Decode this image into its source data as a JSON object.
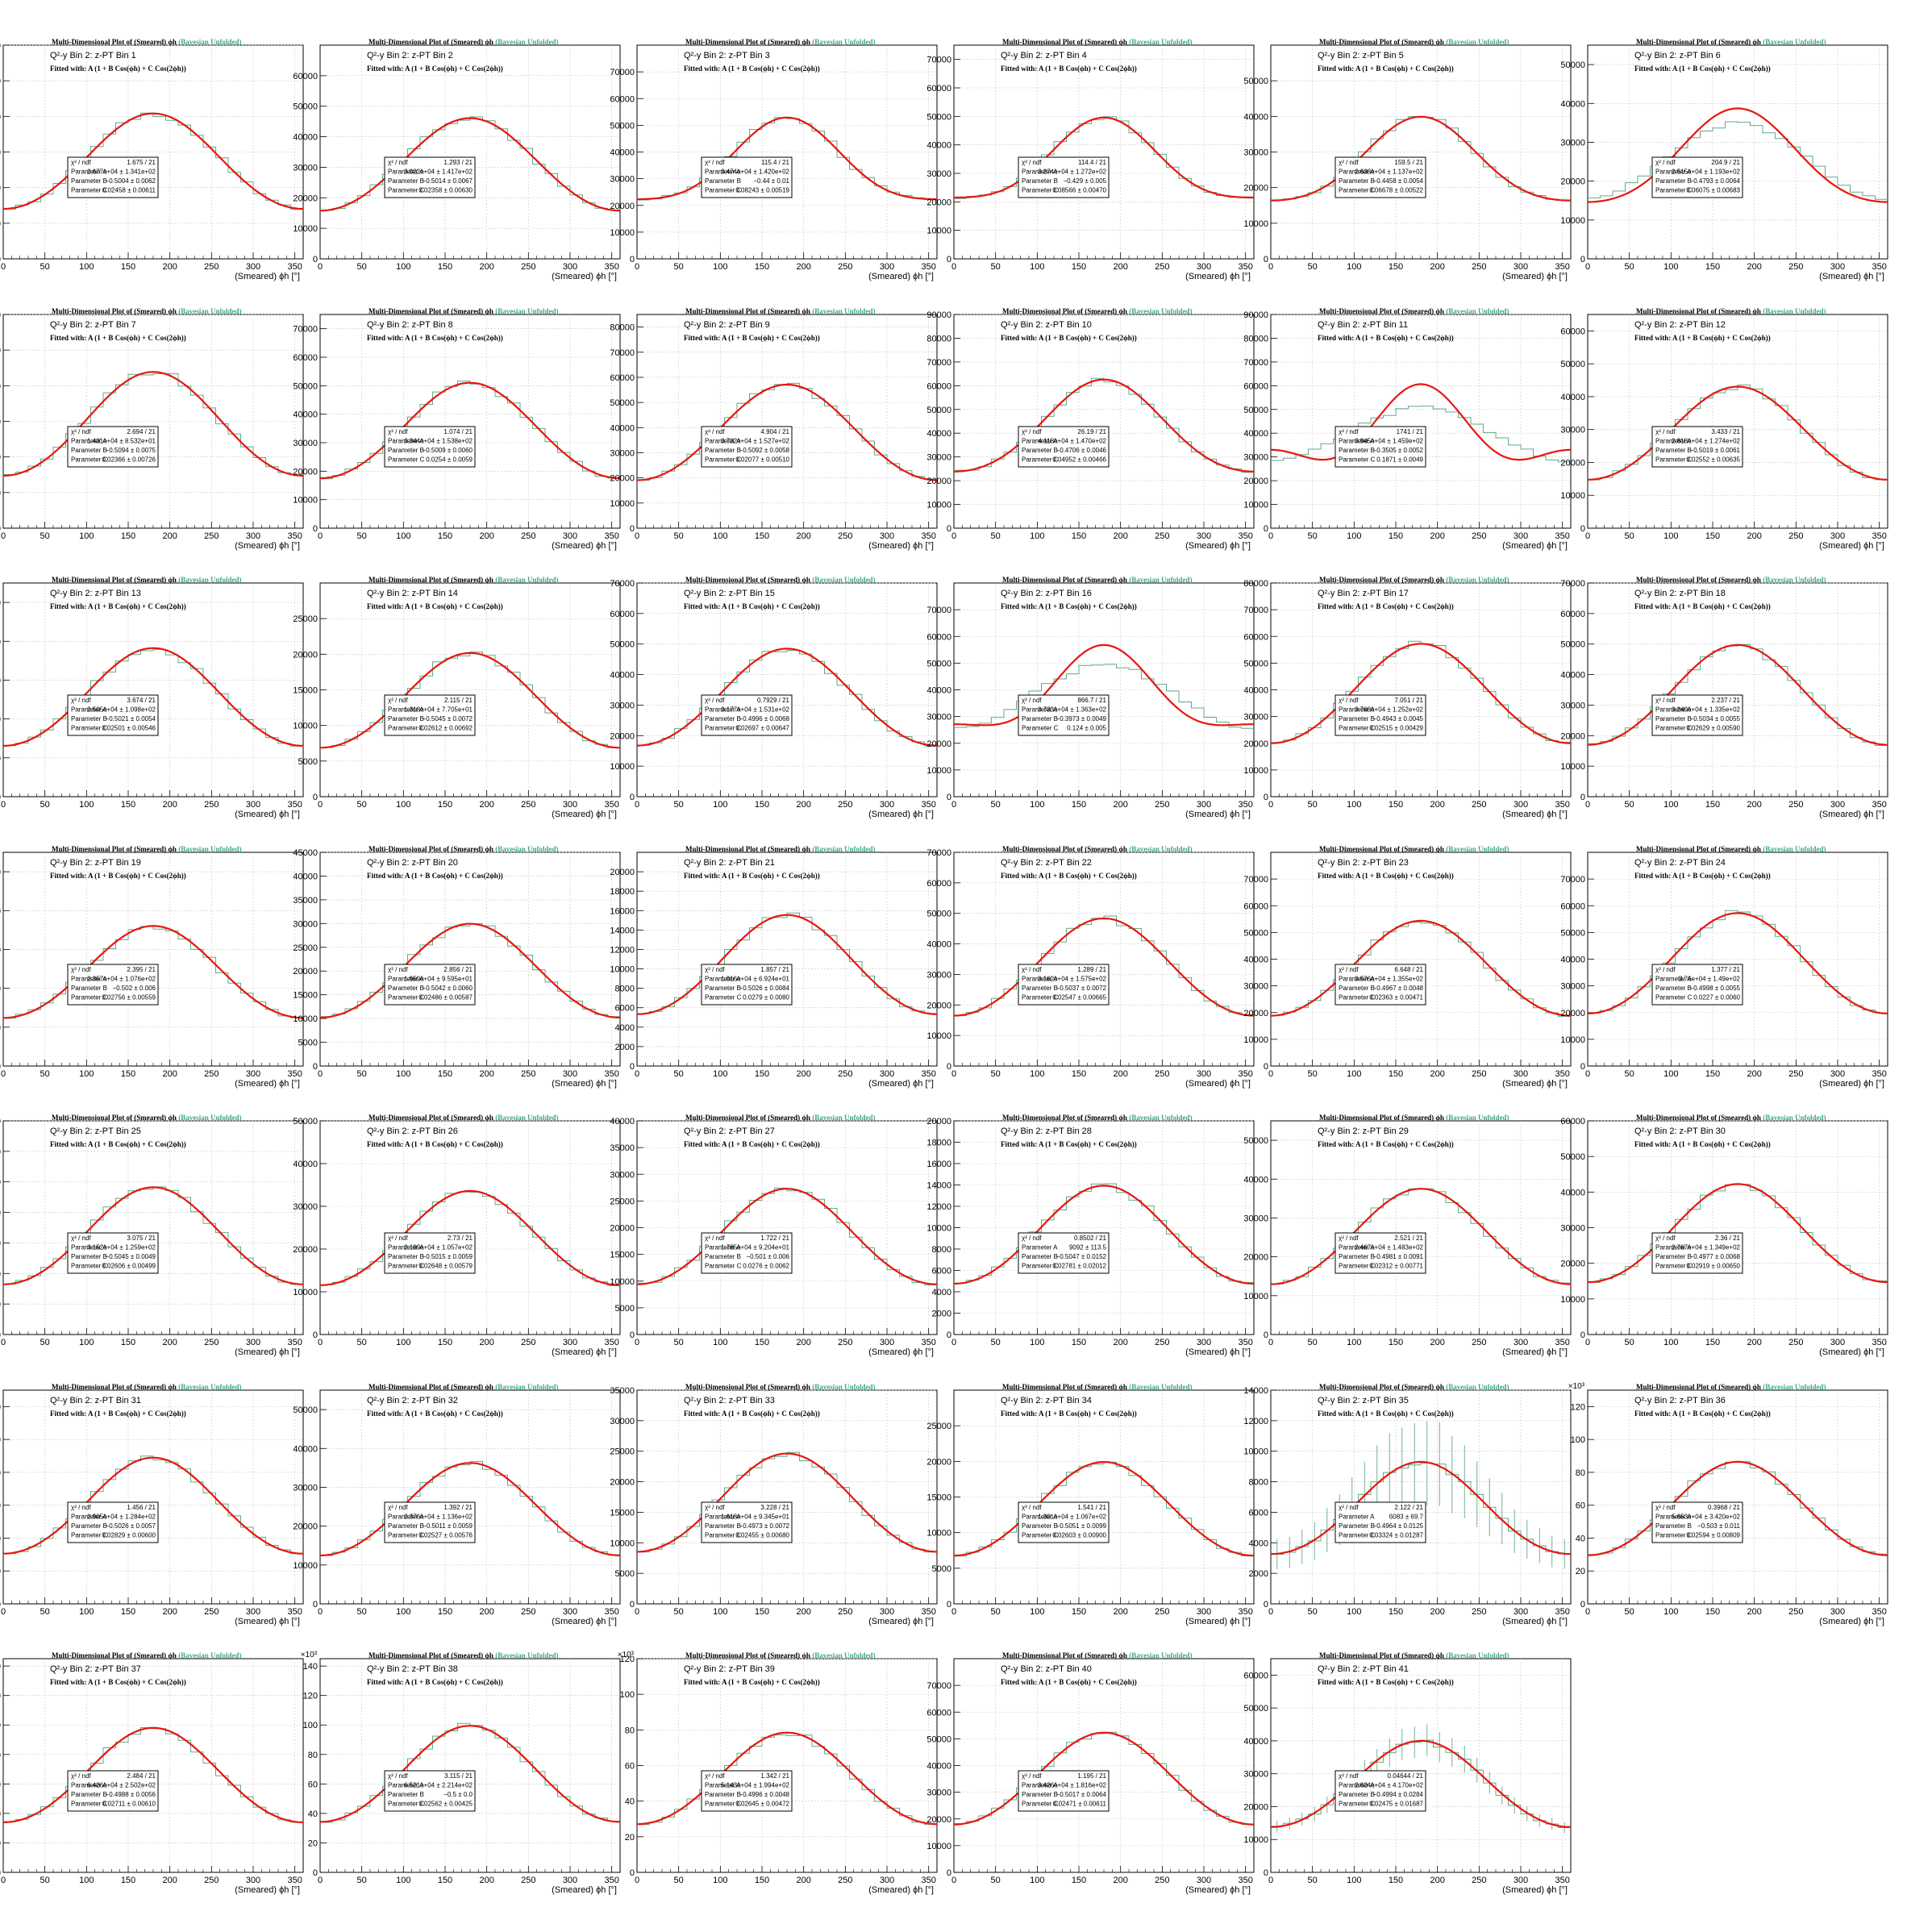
{
  "figure": {
    "title_prefix": "Multi-Dimensional Plot of (Smeared)",
    "title_var": "ϕh",
    "title_suffix": "(Bayesian Unfolded)",
    "label_prefix": "Q²-y Bin 2: z-PT Bin",
    "fit_label": "Fitted with: A (1 + B Cos(ϕh) + C Cos(2ϕh))",
    "xlabel": "(Smeared) ϕh [°]",
    "stats_labels": [
      "χ² / ndf",
      "Parameter A",
      "Parameter B",
      "Parameter C"
    ],
    "colors": {
      "fit": "#e8160c",
      "data": "#5fa98c",
      "grid": "#c8c8c8",
      "axis": "#000000"
    }
  },
  "chart_data": [
    {
      "type": "line",
      "bin": 1,
      "chi2": "1.675 / 21",
      "pA": "2.677e+04 ± 1.341e+02",
      "pB": "−0.5004 ± 0.0062",
      "pC": "0.02458 ± 0.00611",
      "A": 26770,
      "B": -0.5004,
      "C": 0.02458,
      "ylim": [
        0,
        60000
      ],
      "yticks": [
        0,
        10000,
        20000,
        30000,
        40000,
        50000,
        60000
      ],
      "yscale_label": ""
    },
    {
      "type": "line",
      "bin": 2,
      "chi2": "1.293 / 21",
      "pA": "3.022e+04 ± 1.417e+02",
      "pB": "−0.5014 ± 0.0067",
      "pC": "0.02358 ± 0.00630",
      "A": 30220,
      "B": -0.5014,
      "C": 0.02358,
      "ylim": [
        0,
        70000
      ],
      "yticks": [
        0,
        10000,
        20000,
        30000,
        40000,
        50000,
        60000
      ],
      "yscale_label": ""
    },
    {
      "type": "line",
      "bin": 3,
      "chi2": "115.4 / 21",
      "pA": "3.474e+04 ± 1.420e+02",
      "pB": "−0.44 ± 0.01",
      "pC": "0.08243 ± 0.00519",
      "A": 34740,
      "B": -0.44,
      "C": 0.08243,
      "ylim": [
        0,
        80000
      ],
      "yticks": [
        0,
        10000,
        20000,
        30000,
        40000,
        50000,
        60000,
        70000
      ],
      "yscale_label": ""
    },
    {
      "type": "line",
      "bin": 4,
      "chi2": "114.4 / 21",
      "pA": "3.274e+04 ± 1.272e+02",
      "pB": "−0.429 ± 0.005",
      "pC": "0.08566 ± 0.00470",
      "A": 32740,
      "B": -0.429,
      "C": 0.08566,
      "ylim": [
        0,
        75000
      ],
      "yticks": [
        0,
        10000,
        20000,
        30000,
        40000,
        50000,
        60000,
        70000
      ],
      "yscale_label": ""
    },
    {
      "type": "line",
      "bin": 5,
      "chi2": "159.5 / 21",
      "pA": "2.638e+04 ± 1.137e+02",
      "pB": "−0.4458 ± 0.0054",
      "pC": "0.06678 ± 0.00522",
      "A": 26380,
      "B": -0.4458,
      "C": 0.06678,
      "ylim": [
        0,
        60000
      ],
      "yticks": [
        0,
        10000,
        20000,
        30000,
        40000,
        50000
      ],
      "yscale_label": ""
    },
    {
      "type": "line",
      "bin": 6,
      "chi2": "204.9 / 21",
      "pA": "2.515e+04 ± 1.193e+02",
      "pB": "−0.4793 ± 0.0064",
      "pC": "0.06075 ± 0.00683",
      "A": 25150,
      "B": -0.4793,
      "C": 0.06075,
      "ylim": [
        0,
        55000
      ],
      "yticks": [
        0,
        10000,
        20000,
        30000,
        40000,
        50000
      ],
      "yscale_label": ""
    },
    {
      "type": "line",
      "bin": 7,
      "chi2": "2.694 / 21",
      "pA": "1.431e+04 ± 8.532e+01",
      "pB": "−0.5094 ± 0.0075",
      "pC": "0.02366 ± 0.00726",
      "A": 14310,
      "B": -0.5094,
      "C": 0.02366,
      "ylim": [
        0,
        30000
      ],
      "yticks": [
        0,
        5000,
        10000,
        15000,
        20000,
        25000,
        30000
      ],
      "yscale_label": ""
    },
    {
      "type": "line",
      "bin": 8,
      "chi2": "1.074 / 21",
      "pA": "3.344e+04 ± 1.538e+02",
      "pB": "−0.5009 ± 0.0060",
      "pC": "0.0254 ± 0.0059",
      "A": 33440,
      "B": -0.5009,
      "C": 0.0254,
      "ylim": [
        0,
        75000
      ],
      "yticks": [
        0,
        10000,
        20000,
        30000,
        40000,
        50000,
        60000,
        70000
      ],
      "yscale_label": ""
    },
    {
      "type": "line",
      "bin": 9,
      "chi2": "4.904 / 21",
      "pA": "3.732e+04 ± 1.527e+02",
      "pB": "−0.5092 ± 0.0058",
      "pC": "0.02077 ± 0.00510",
      "A": 37320,
      "B": -0.5092,
      "C": 0.02077,
      "ylim": [
        0,
        85000
      ],
      "yticks": [
        0,
        10000,
        20000,
        30000,
        40000,
        50000,
        60000,
        70000,
        80000
      ],
      "yscale_label": ""
    },
    {
      "type": "line",
      "bin": 10,
      "chi2": "26.19 / 21",
      "pA": "4.118e+04 ± 1.470e+02",
      "pB": "−0.4706 ± 0.0046",
      "pC": "0.04952 ± 0.00466",
      "A": 41180,
      "B": -0.4706,
      "C": 0.04952,
      "ylim": [
        0,
        90000
      ],
      "yticks": [
        0,
        10000,
        20000,
        30000,
        40000,
        50000,
        60000,
        70000,
        80000,
        90000
      ],
      "yscale_label": ""
    },
    {
      "type": "line",
      "bin": 11,
      "chi2": "1741 / 21",
      "pA": "3.945e+04 ± 1.459e+02",
      "pB": "−0.3505 ± 0.0052",
      "pC": "0.1871 ± 0.0049",
      "A": 39450,
      "B": -0.3505,
      "C": 0.1871,
      "ylim": [
        0,
        90000
      ],
      "yticks": [
        0,
        10000,
        20000,
        30000,
        40000,
        50000,
        60000,
        70000,
        80000,
        90000
      ],
      "yscale_label": ""
    },
    {
      "type": "line",
      "bin": 12,
      "chi2": "3.433 / 21",
      "pA": "2.818e+04 ± 1.274e+02",
      "pB": "−0.5019 ± 0.0061",
      "pC": "0.02552 ± 0.00635",
      "A": 28180,
      "B": -0.5019,
      "C": 0.02552,
      "ylim": [
        0,
        65000
      ],
      "yticks": [
        0,
        10000,
        20000,
        30000,
        40000,
        50000,
        60000
      ],
      "yscale_label": ""
    },
    {
      "type": "line",
      "bin": 13,
      "chi2": "3.674 / 21",
      "pA": "2.505e+04 ± 1.098e+02",
      "pB": "−0.5021 ± 0.0054",
      "pC": "0.02501 ± 0.00546",
      "A": 25050,
      "B": -0.5021,
      "C": 0.02501,
      "ylim": [
        0,
        55000
      ],
      "yticks": [
        0,
        10000,
        20000,
        30000,
        40000,
        50000
      ],
      "yscale_label": ""
    },
    {
      "type": "line",
      "bin": 14,
      "chi2": "2.115 / 21",
      "pA": "1.318e+04 ± 7.705e+01",
      "pB": "−0.5045 ± 0.0072",
      "pC": "0.02612 ± 0.00692",
      "A": 13180,
      "B": -0.5045,
      "C": 0.02612,
      "ylim": [
        0,
        30000
      ],
      "yticks": [
        0,
        5000,
        10000,
        15000,
        20000,
        25000
      ],
      "yscale_label": ""
    },
    {
      "type": "line",
      "bin": 15,
      "chi2": "0.7929 / 21",
      "pA": "3.177e+04 ± 1.531e+02",
      "pB": "−0.4996 ± 0.0068",
      "pC": "0.02697 ± 0.00647",
      "A": 31770,
      "B": -0.4996,
      "C": 0.02697,
      "ylim": [
        0,
        70000
      ],
      "yticks": [
        0,
        10000,
        20000,
        30000,
        40000,
        50000,
        60000,
        70000
      ],
      "yscale_label": ""
    },
    {
      "type": "line",
      "bin": 16,
      "chi2": "866.7 / 21",
      "pA": "3.733e+04 ± 1.363e+02",
      "pB": "−0.3973 ± 0.0049",
      "pC": "0.124 ± 0.005",
      "A": 37330,
      "B": -0.3973,
      "C": 0.124,
      "ylim": [
        0,
        80000
      ],
      "yticks": [
        0,
        10000,
        20000,
        30000,
        40000,
        50000,
        60000,
        70000
      ],
      "yscale_label": ""
    },
    {
      "type": "line",
      "bin": 17,
      "chi2": "7.051 / 21",
      "pA": "3.768e+04 ± 1.252e+02",
      "pB": "−0.4943 ± 0.0045",
      "pC": "0.02515 ± 0.00429",
      "A": 37680,
      "B": -0.4943,
      "C": 0.02515,
      "ylim": [
        0,
        80000
      ],
      "yticks": [
        0,
        10000,
        20000,
        30000,
        40000,
        50000,
        60000,
        70000,
        80000
      ],
      "yscale_label": ""
    },
    {
      "type": "line",
      "bin": 18,
      "chi2": "2.237 / 21",
      "pA": "3.249e+04 ± 1.335e+02",
      "pB": "−0.5034 ± 0.0055",
      "pC": "0.02629 ± 0.00590",
      "A": 32490,
      "B": -0.5034,
      "C": 0.02629,
      "ylim": [
        0,
        70000
      ],
      "yticks": [
        0,
        10000,
        20000,
        30000,
        40000,
        50000,
        60000,
        70000
      ],
      "yscale_label": ""
    },
    {
      "type": "line",
      "bin": 19,
      "chi2": "2.395 / 21",
      "pA": "2.357e+04 ± 1.076e+02",
      "pB": "−0.502 ± 0.006",
      "pC": "0.02756 ± 0.00559",
      "A": 23570,
      "B": -0.502,
      "C": 0.02756,
      "ylim": [
        0,
        55000
      ],
      "yticks": [
        0,
        10000,
        20000,
        30000,
        40000,
        50000
      ],
      "yscale_label": ""
    },
    {
      "type": "line",
      "bin": 20,
      "chi2": "2.856 / 21",
      "pA": "1.959e+04 ± 9.595e+01",
      "pB": "−0.5042 ± 0.0060",
      "pC": "0.02486 ± 0.00587",
      "A": 19590,
      "B": -0.5042,
      "C": 0.02486,
      "ylim": [
        0,
        45000
      ],
      "yticks": [
        0,
        5000,
        10000,
        15000,
        20000,
        25000,
        30000,
        35000,
        40000,
        45000
      ],
      "yscale_label": ""
    },
    {
      "type": "line",
      "bin": 21,
      "chi2": "1.857 / 21",
      "pA": "1.016e+04 ± 6.924e+01",
      "pB": "−0.5026 ± 0.0084",
      "pC": "0.0279 ± 0.0080",
      "A": 10160,
      "B": -0.5026,
      "C": 0.0279,
      "ylim": [
        0,
        22000
      ],
      "yticks": [
        0,
        2000,
        4000,
        6000,
        8000,
        10000,
        12000,
        14000,
        16000,
        18000,
        20000
      ],
      "yscale_label": ""
    },
    {
      "type": "line",
      "bin": 22,
      "chi2": "1.289 / 21",
      "pA": "3.162e+04 ± 1.575e+02",
      "pB": "−0.5037 ± 0.0072",
      "pC": "0.02547 ± 0.00665",
      "A": 31620,
      "B": -0.5037,
      "C": 0.02547,
      "ylim": [
        0,
        70000
      ],
      "yticks": [
        0,
        10000,
        20000,
        30000,
        40000,
        50000,
        60000,
        70000
      ],
      "yscale_label": ""
    },
    {
      "type": "line",
      "bin": 23,
      "chi2": "6.648 / 21",
      "pA": "3.576e+04 ± 1.355e+02",
      "pB": "−0.4967 ± 0.0048",
      "pC": "0.02363 ± 0.00471",
      "A": 35760,
      "B": -0.4967,
      "C": 0.02363,
      "ylim": [
        0,
        80000
      ],
      "yticks": [
        0,
        10000,
        20000,
        30000,
        40000,
        50000,
        60000,
        70000
      ],
      "yscale_label": ""
    },
    {
      "type": "line",
      "bin": 24,
      "chi2": "1.377 / 21",
      "pA": "3.76e+04 ± 1.49e+02",
      "pB": "−0.4998 ± 0.0055",
      "pC": "0.0227 ± 0.0060",
      "A": 37600,
      "B": -0.4998,
      "C": 0.0227,
      "ylim": [
        0,
        80000
      ],
      "yticks": [
        0,
        10000,
        20000,
        30000,
        40000,
        50000,
        60000,
        70000
      ],
      "yscale_label": ""
    },
    {
      "type": "line",
      "bin": 25,
      "chi2": "3.075 / 21",
      "pA": "3.152e+04 ± 1.259e+02",
      "pB": "−0.5045 ± 0.0049",
      "pC": "0.02606 ± 0.00499",
      "A": 31520,
      "B": -0.5045,
      "C": 0.02606,
      "ylim": [
        0,
        70000
      ],
      "yticks": [
        0,
        10000,
        20000,
        30000,
        40000,
        50000,
        60000,
        70000
      ],
      "yscale_label": ""
    },
    {
      "type": "line",
      "bin": 26,
      "chi2": "2.73 / 21",
      "pA": "2.199e+04 ± 1.057e+02",
      "pB": "−0.5015 ± 0.0059",
      "pC": "0.02648 ± 0.00579",
      "A": 21990,
      "B": -0.5015,
      "C": 0.02648,
      "ylim": [
        0,
        50000
      ],
      "yticks": [
        0,
        10000,
        20000,
        30000,
        40000,
        50000
      ],
      "yscale_label": ""
    },
    {
      "type": "line",
      "bin": 27,
      "chi2": "1.722 / 21",
      "pA": "1.785e+04 ± 9.204e+01",
      "pB": "−0.501 ± 0.006",
      "pC": "0.0276 ± 0.0062",
      "A": 17850,
      "B": -0.501,
      "C": 0.0276,
      "ylim": [
        0,
        40000
      ],
      "yticks": [
        0,
        5000,
        10000,
        15000,
        20000,
        25000,
        30000,
        35000,
        40000
      ],
      "yscale_label": ""
    },
    {
      "type": "line",
      "bin": 28,
      "chi2": "0.8502 / 21",
      "pA": "9092 ± 113.5",
      "pB": "−0.5047 ± 0.0152",
      "pC": "0.02781 ± 0.02012",
      "A": 9092,
      "B": -0.5047,
      "C": 0.02781,
      "ylim": [
        0,
        20000
      ],
      "yticks": [
        0,
        2000,
        4000,
        6000,
        8000,
        10000,
        12000,
        14000,
        16000,
        18000,
        20000
      ],
      "yscale_label": ""
    },
    {
      "type": "line",
      "bin": 29,
      "chi2": "2.521 / 21",
      "pA": "2.467e+04 ± 1.483e+02",
      "pB": "−0.4981 ± 0.0091",
      "pC": "0.02312 ± 0.00771",
      "A": 24670,
      "B": -0.4981,
      "C": 0.02312,
      "ylim": [
        0,
        55000
      ],
      "yticks": [
        0,
        10000,
        20000,
        30000,
        40000,
        50000
      ],
      "yscale_label": ""
    },
    {
      "type": "line",
      "bin": 30,
      "chi2": "2.36 / 21",
      "pA": "2.767e+04 ± 1.349e+02",
      "pB": "−0.4977 ± 0.0068",
      "pC": "0.02919 ± 0.00650",
      "A": 27670,
      "B": -0.4977,
      "C": 0.02919,
      "ylim": [
        0,
        60000
      ],
      "yticks": [
        0,
        10000,
        20000,
        30000,
        40000,
        50000,
        60000
      ],
      "yscale_label": ""
    },
    {
      "type": "line",
      "bin": 31,
      "chi2": "1.456 / 21",
      "pA": "2.905e+04 ± 1.284e+02",
      "pB": "−0.5026 ± 0.0057",
      "pC": "0.02829 ± 0.00600",
      "A": 29050,
      "B": -0.5026,
      "C": 0.02829,
      "ylim": [
        0,
        65000
      ],
      "yticks": [
        0,
        10000,
        20000,
        30000,
        40000,
        50000,
        60000
      ],
      "yscale_label": ""
    },
    {
      "type": "line",
      "bin": 32,
      "chi2": "1.392 / 21",
      "pA": "2.376e+04 ± 1.136e+02",
      "pB": "−0.5011 ± 0.0059",
      "pC": "0.02527 ± 0.00576",
      "A": 23760,
      "B": -0.5011,
      "C": 0.02527,
      "ylim": [
        0,
        55000
      ],
      "yticks": [
        0,
        10000,
        20000,
        30000,
        40000,
        50000
      ],
      "yscale_label": ""
    },
    {
      "type": "line",
      "bin": 33,
      "chi2": "3.228 / 21",
      "pA": "1.618e+04 ± 9.345e+01",
      "pB": "−0.4973 ± 0.0072",
      "pC": "0.02455 ± 0.00680",
      "A": 16180,
      "B": -0.4973,
      "C": 0.02455,
      "ylim": [
        0,
        35000
      ],
      "yticks": [
        0,
        5000,
        10000,
        15000,
        20000,
        25000,
        30000,
        35000
      ],
      "yscale_label": ""
    },
    {
      "type": "line",
      "bin": 34,
      "chi2": "1.541 / 21",
      "pA": "1.301e+04 ± 1.067e+02",
      "pB": "−0.5051 ± 0.0099",
      "pC": "0.02603 ± 0.00900",
      "A": 13010,
      "B": -0.5051,
      "C": 0.02603,
      "ylim": [
        0,
        30000
      ],
      "yticks": [
        0,
        5000,
        10000,
        15000,
        20000,
        25000
      ],
      "yscale_label": ""
    },
    {
      "type": "line",
      "bin": 35,
      "chi2": "2.122 / 21",
      "pA": "6083 ± 69.7",
      "pB": "−0.4964 ± 0.0125",
      "pC": "0.03324 ± 0.01287",
      "A": 6083,
      "B": -0.4964,
      "C": 0.03324,
      "ylim": [
        0,
        14000
      ],
      "yticks": [
        0,
        2000,
        4000,
        6000,
        8000,
        10000,
        12000,
        14000
      ],
      "yscale_label": ""
    },
    {
      "type": "line",
      "bin": 36,
      "chi2": "0.3968 / 21",
      "pA": "5.653e+04 ± 3.420e+02",
      "pB": "−0.503 ± 0.011",
      "pC": "0.02594 ± 0.00809",
      "A": 56530,
      "B": -0.503,
      "C": 0.02594,
      "ylim": [
        0,
        130000
      ],
      "yticks": [
        0,
        20000,
        40000,
        60000,
        80000,
        100000,
        120000
      ],
      "yscale_label": "×10³"
    },
    {
      "type": "line",
      "bin": 37,
      "chi2": "2.484 / 21",
      "pA": "6.426e+04 ± 2.502e+02",
      "pB": "−0.4988 ± 0.0056",
      "pC": "0.02711 ± 0.00610",
      "A": 64260,
      "B": -0.4988,
      "C": 0.02711,
      "ylim": [
        0,
        145000
      ],
      "yticks": [
        0,
        20000,
        40000,
        60000,
        80000,
        100000,
        120000,
        140000
      ],
      "yscale_label": "×10³"
    },
    {
      "type": "line",
      "bin": 38,
      "chi2": "3.115 / 21",
      "pA": "6.521e+04 ± 2.214e+02",
      "pB": "−0.5 ± 0.0",
      "pC": "0.02562 ± 0.00425",
      "A": 65210,
      "B": -0.5,
      "C": 0.02562,
      "ylim": [
        0,
        145000
      ],
      "yticks": [
        0,
        20000,
        40000,
        60000,
        80000,
        100000,
        120000,
        140000
      ],
      "yscale_label": "×10³"
    },
    {
      "type": "line",
      "bin": 39,
      "chi2": "1.342 / 21",
      "pA": "5.143e+04 ± 1.994e+02",
      "pB": "−0.4996 ± 0.0048",
      "pC": "0.02645 ± 0.00472",
      "A": 51430,
      "B": -0.4996,
      "C": 0.02645,
      "ylim": [
        0,
        120000
      ],
      "yticks": [
        0,
        20000,
        40000,
        60000,
        80000,
        100000,
        120000
      ],
      "yscale_label": "×10³"
    },
    {
      "type": "line",
      "bin": 40,
      "chi2": "1.195 / 21",
      "pA": "3.426e+04 ± 1.816e+02",
      "pB": "−0.5017 ± 0.0064",
      "pC": "0.02471 ± 0.00611",
      "A": 34260,
      "B": -0.5017,
      "C": 0.02471,
      "ylim": [
        0,
        80000
      ],
      "yticks": [
        0,
        10000,
        20000,
        30000,
        40000,
        50000,
        60000,
        70000
      ],
      "yscale_label": ""
    },
    {
      "type": "line",
      "bin": 41,
      "chi2": "0.04644 / 21",
      "pA": "2.624e+04 ± 4.170e+02",
      "pB": "−0.4994 ± 0.0284",
      "pC": "0.02475 ± 0.01687",
      "A": 26240,
      "B": -0.4994,
      "C": 0.02475,
      "ylim": [
        0,
        65000
      ],
      "yticks": [
        0,
        10000,
        20000,
        30000,
        40000,
        50000,
        60000
      ],
      "yscale_label": ""
    }
  ]
}
